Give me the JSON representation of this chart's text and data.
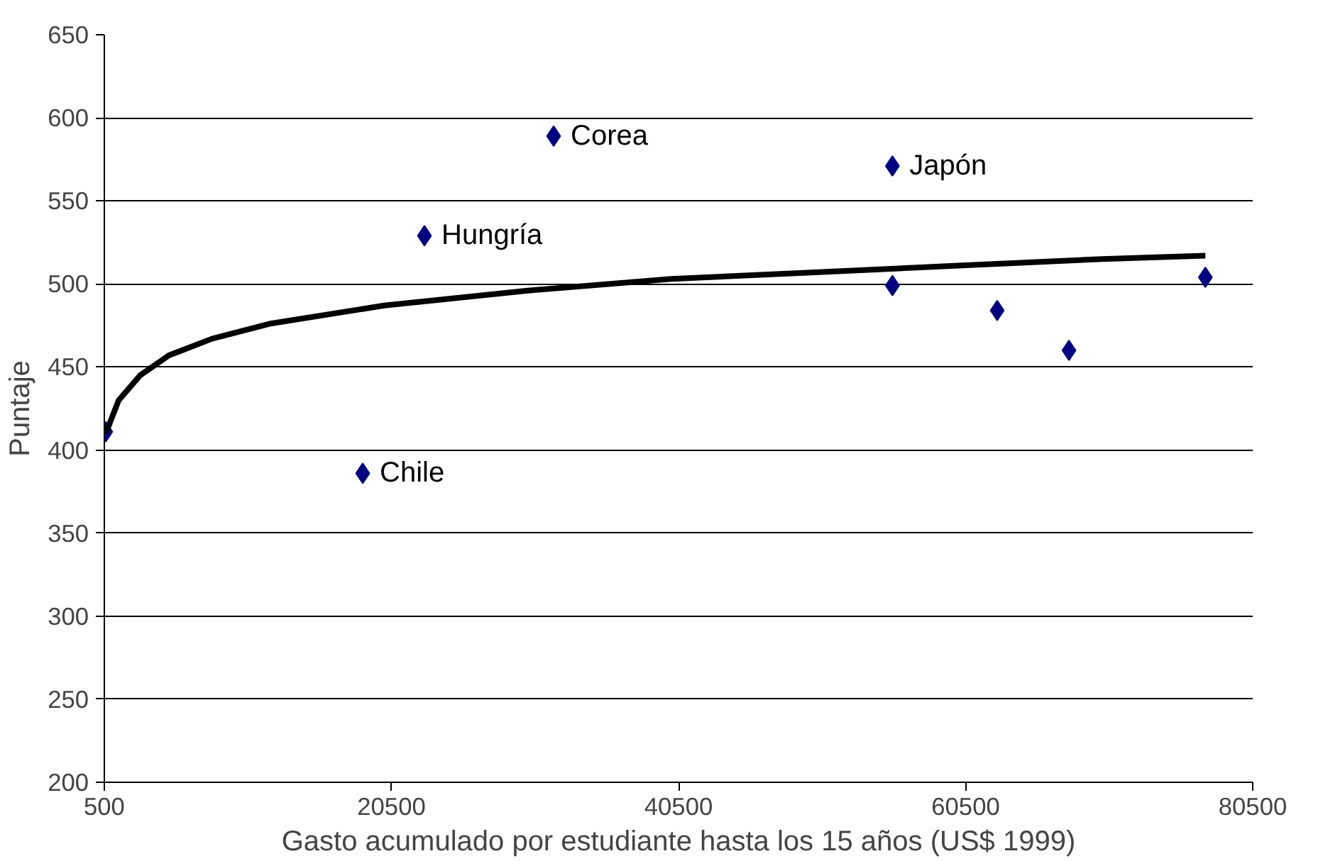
{
  "chart_data": {
    "type": "scatter",
    "xlabel": "Gasto acumulado por estudiante hasta los 15 años (US$ 1999)",
    "ylabel": "Puntaje",
    "xlim": [
      500,
      80500
    ],
    "xticks": [
      500,
      20500,
      40500,
      60500,
      80500
    ],
    "ylim": [
      200,
      650
    ],
    "yticks": [
      200,
      250,
      300,
      350,
      400,
      450,
      500,
      550,
      600,
      650
    ],
    "grid": "y",
    "series": [
      {
        "color": "#000080",
        "marker": "diamond",
        "x": [
          600,
          18500,
          22800,
          31800,
          55400,
          55400,
          62700,
          67700,
          77200
        ],
        "values": [
          411,
          386,
          529,
          589,
          571,
          499,
          484,
          460,
          504
        ]
      },
      {
        "type": "line",
        "color": "#000000",
        "line_style": "solid",
        "marker": "none",
        "x": [
          600,
          1500,
          3000,
          5000,
          8000,
          12000,
          20000,
          30000,
          40000,
          50000,
          60000,
          70000,
          77200
        ],
        "values": [
          410,
          430,
          445,
          457,
          467,
          476,
          487,
          496,
          503,
          507,
          511,
          515,
          517
        ]
      }
    ],
    "annotations": [
      {
        "text": "Chile",
        "x": 18500,
        "y": 386
      },
      {
        "text": "Hungría",
        "x": 22800,
        "y": 529
      },
      {
        "text": "Corea",
        "x": 31800,
        "y": 589
      },
      {
        "text": "Japón",
        "x": 55400,
        "y": 571
      }
    ]
  }
}
